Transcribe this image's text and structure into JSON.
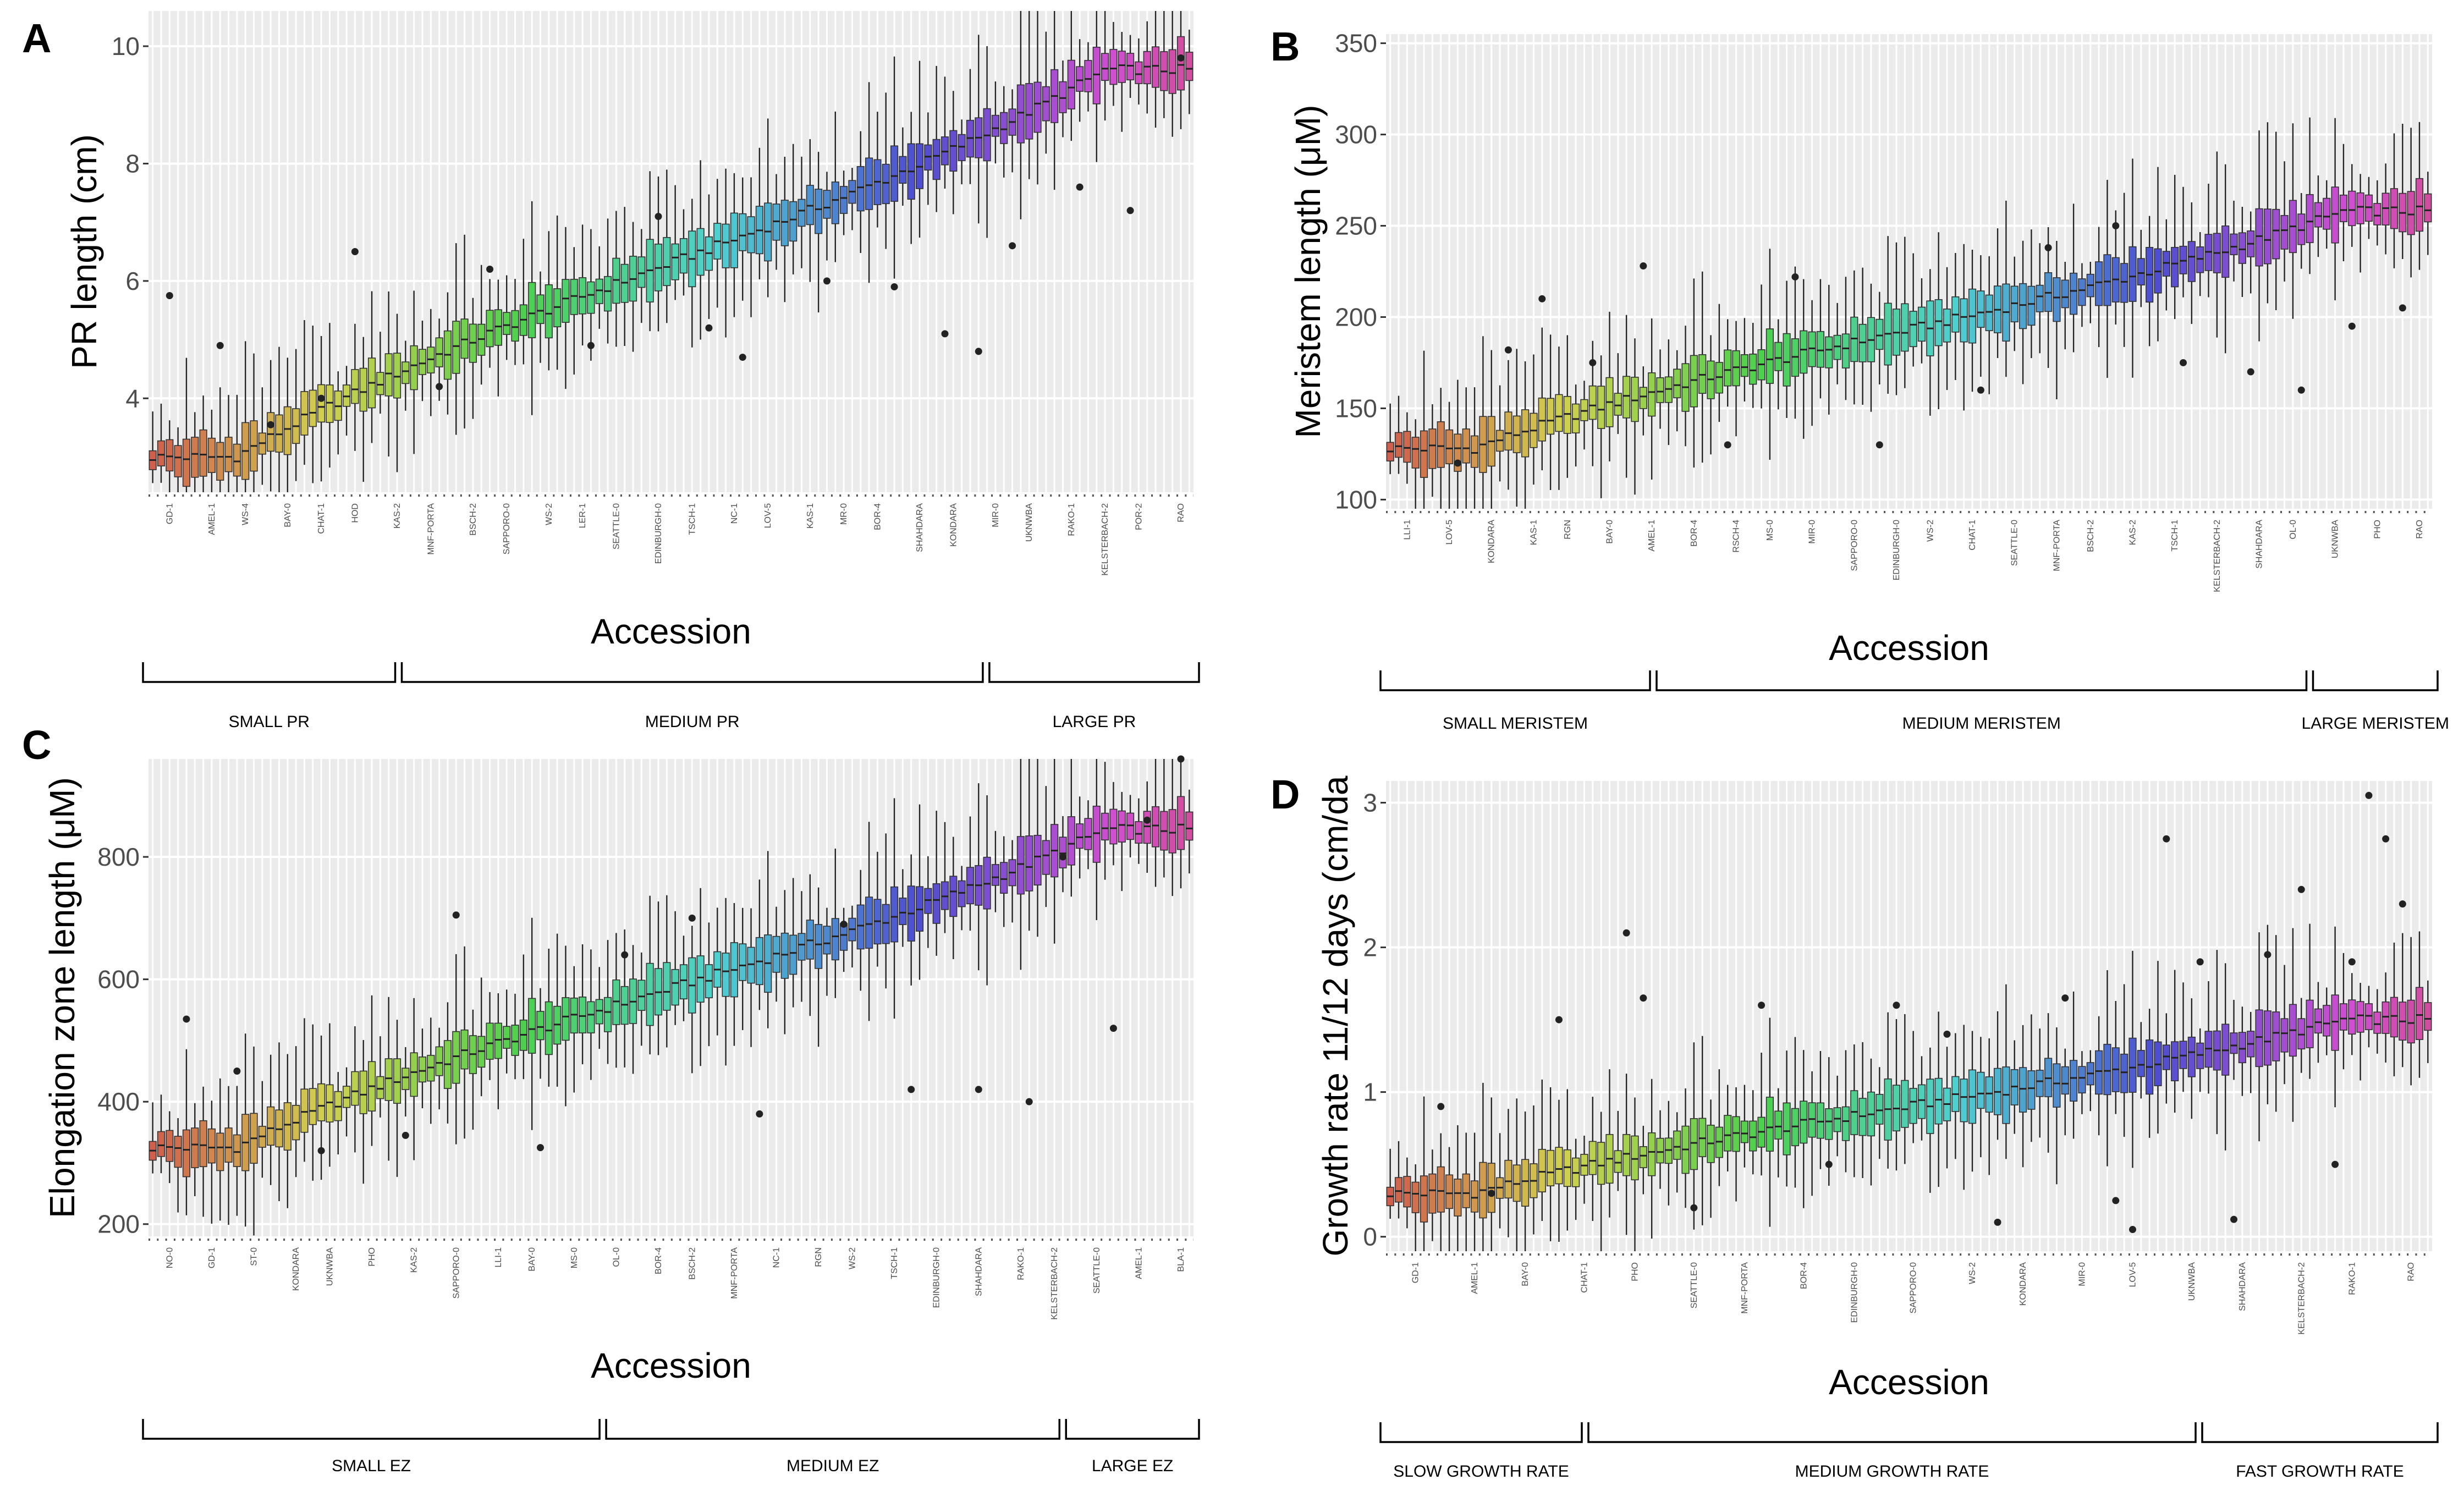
{
  "chart_data": [
    {
      "panel": "A",
      "type": "box",
      "xlabel": "Accession",
      "ylabel": "PR length  (cm)",
      "ylim": [
        2.4,
        10.6
      ],
      "yticks": [
        4,
        6,
        8,
        10
      ],
      "n_accessions": 124,
      "median_range": [
        3.0,
        9.6
      ],
      "categories": [
        "GD-1",
        "AMEL-1",
        "WS-4",
        "BAY-0",
        "CHAT-1",
        "HOD",
        "KAS-2",
        "MNF-PORTA",
        "BSCH-2",
        "SAPPORO-0",
        "WS-2",
        "LER-1",
        "SEATTLE-0",
        "EDINBURGH-0",
        "TSCH-1",
        "NC-1",
        "LOV-5",
        "KAS-1",
        "MR-0",
        "BOR-4",
        "SHAHDARA",
        "KONDARA",
        "MIR-0",
        "UKNWBA",
        "RAKO-1",
        "KELSTERBACH-2",
        "POR-2",
        "RAO"
      ],
      "groups": [
        {
          "label": "SMALL PR",
          "n": 30
        },
        {
          "label": "MEDIUM PR",
          "n": 69
        },
        {
          "label": "LARGE PR",
          "n": 25
        }
      ],
      "outliers": [
        [
          2,
          5.75
        ],
        [
          8,
          4.9
        ],
        [
          14,
          3.55
        ],
        [
          20,
          4.0
        ],
        [
          24,
          6.5
        ],
        [
          34,
          4.2
        ],
        [
          40,
          6.2
        ],
        [
          52,
          4.9
        ],
        [
          60,
          7.1
        ],
        [
          66,
          5.2
        ],
        [
          70,
          4.7
        ],
        [
          80,
          6.0
        ],
        [
          88,
          5.9
        ],
        [
          94,
          5.1
        ],
        [
          98,
          4.8
        ],
        [
          102,
          6.6
        ],
        [
          110,
          7.6
        ],
        [
          116,
          7.2
        ],
        [
          122,
          9.8
        ]
      ]
    },
    {
      "panel": "B",
      "type": "box",
      "xlabel": "Accession",
      "ylabel": "Meristem length (μM)",
      "ylim": [
        95,
        355
      ],
      "yticks": [
        100,
        150,
        200,
        250,
        300,
        350
      ],
      "n_accessions": 124,
      "median_range": [
        128,
        258
      ],
      "categories": [
        "LLI-1",
        "LOV-5",
        "KONDARA",
        "KAS-1",
        "RGN",
        "BAY-0",
        "AMEL-1",
        "BOR-4",
        "RSCH-4",
        "MS-0",
        "MIR-0",
        "SAPPORO-0",
        "EDINBURGH-0",
        "WS-2",
        "CHAT-1",
        "SEATTLE-0",
        "MNF-PORTA",
        "BSCH-2",
        "KAS-2",
        "TSCH-1",
        "KELSTERBACH-2",
        "SHAHDARA",
        "OL-0",
        "UKNWBA",
        "PHO",
        "RAO"
      ],
      "groups": [
        {
          "label": "SMALL MERISTEM",
          "n": 32
        },
        {
          "label": "MEDIUM MERISTEM",
          "n": 77
        },
        {
          "label": "LARGE MERISTEM",
          "n": 15
        }
      ],
      "outliers": [
        [
          8,
          120
        ],
        [
          14,
          182
        ],
        [
          18,
          210
        ],
        [
          24,
          175
        ],
        [
          30,
          228
        ],
        [
          40,
          130
        ],
        [
          48,
          222
        ],
        [
          58,
          130
        ],
        [
          70,
          160
        ],
        [
          78,
          238
        ],
        [
          86,
          250
        ],
        [
          94,
          175
        ],
        [
          102,
          170
        ],
        [
          108,
          160
        ],
        [
          114,
          195
        ],
        [
          120,
          205
        ]
      ]
    },
    {
      "panel": "C",
      "type": "box",
      "xlabel": "Accession",
      "ylabel": "Elongation zone length (μM)",
      "ylim": [
        180,
        960
      ],
      "yticks": [
        200,
        400,
        600,
        800
      ],
      "n_accessions": 124,
      "median_range": [
        325,
        845
      ],
      "categories": [
        "NO-0",
        "GD-1",
        "ST-0",
        "KONDARA",
        "UKNWBA",
        "PHO",
        "KAS-2",
        "SAPPORO-0",
        "LLI-1",
        "BAY-0",
        "MS-0",
        "OL-0",
        "BOR-4",
        "BSCH-2",
        "MNF-PORTA",
        "NC-1",
        "RGN",
        "WS-2",
        "TSCH-1",
        "EDINBURGH-0",
        "SHAHDARA",
        "RAKO-1",
        "KELSTERBACH-2",
        "SEATTLE-0",
        "AMEL-1",
        "BLA-1"
      ],
      "groups": [
        {
          "label": "SMALL EZ",
          "n": 54
        },
        {
          "label": "MEDIUM EZ",
          "n": 54
        },
        {
          "label": "LARGE EZ",
          "n": 16
        }
      ],
      "outliers": [
        [
          4,
          535
        ],
        [
          10,
          450
        ],
        [
          20,
          320
        ],
        [
          30,
          345
        ],
        [
          36,
          705
        ],
        [
          46,
          325
        ],
        [
          56,
          640
        ],
        [
          64,
          700
        ],
        [
          72,
          380
        ],
        [
          82,
          690
        ],
        [
          90,
          420
        ],
        [
          98,
          420
        ],
        [
          104,
          400
        ],
        [
          108,
          800
        ],
        [
          114,
          520
        ],
        [
          118,
          860
        ],
        [
          122,
          960
        ]
      ]
    },
    {
      "panel": "D",
      "type": "box",
      "xlabel": "Accession",
      "ylabel": "Growth rate 11/12 days (cm/da",
      "ylim": [
        -0.1,
        3.15
      ],
      "yticks": [
        0,
        1,
        2,
        3
      ],
      "n_accessions": 124,
      "median_range": [
        0.3,
        1.5
      ],
      "categories": [
        "GD-1",
        "AMEL-1",
        "BAY-0",
        "CHAT-1",
        "PHO",
        "SEATTLE-0",
        "MNF-PORTA",
        "BOR-4",
        "EDINBURGH-0",
        "SAPPORO-0",
        "WS-2",
        "KONDARA",
        "MIR-0",
        "LOV-5",
        "UKNWBA",
        "SHAHDARA",
        "KELSTERBACH-2",
        "RAKO-1",
        "RAO"
      ],
      "groups": [
        {
          "label": "SLOW GROWTH RATE",
          "n": 24
        },
        {
          "label": "MEDIUM GROWTH RATE",
          "n": 72
        },
        {
          "label": "FAST GROWTH RATE",
          "n": 28
        }
      ],
      "outliers": [
        [
          6,
          0.9
        ],
        [
          12,
          0.3
        ],
        [
          20,
          1.5
        ],
        [
          28,
          2.1
        ],
        [
          30,
          1.65
        ],
        [
          36,
          0.2
        ],
        [
          44,
          1.6
        ],
        [
          52,
          0.5
        ],
        [
          60,
          1.6
        ],
        [
          66,
          1.4
        ],
        [
          72,
          0.1
        ],
        [
          80,
          1.65
        ],
        [
          86,
          0.25
        ],
        [
          88,
          0.05
        ],
        [
          92,
          2.75
        ],
        [
          96,
          1.9
        ],
        [
          100,
          0.12
        ],
        [
          104,
          1.95
        ],
        [
          108,
          2.4
        ],
        [
          112,
          0.5
        ],
        [
          114,
          1.9
        ],
        [
          116,
          3.05
        ],
        [
          118,
          2.75
        ],
        [
          120,
          2.3
        ]
      ]
    }
  ]
}
